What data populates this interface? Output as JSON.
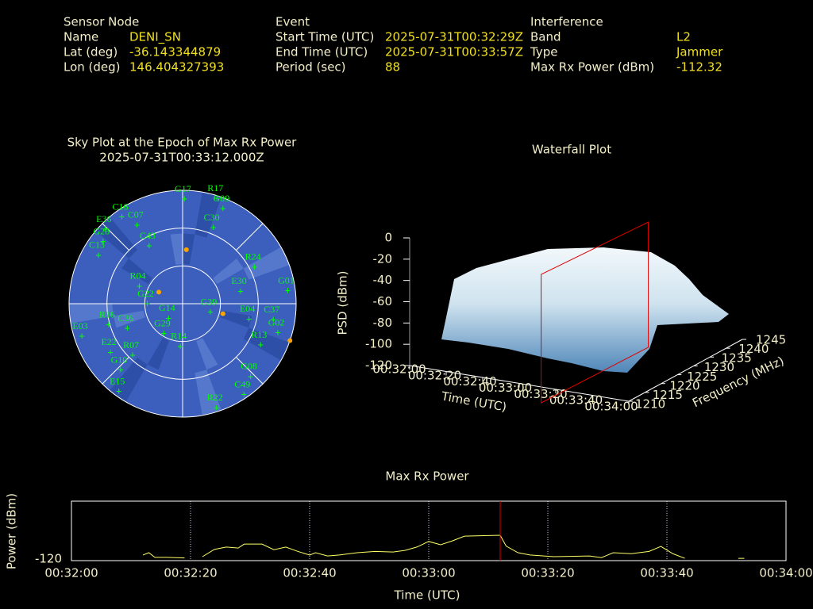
{
  "sensor": {
    "heading": "Sensor Node",
    "rows": [
      [
        "Name",
        "DENI_SN"
      ],
      [
        "Lat (deg)",
        "-36.143344879"
      ],
      [
        "Lon (deg)",
        "146.404327393"
      ]
    ]
  },
  "event": {
    "heading": "Event",
    "rows": [
      [
        "Start Time (UTC)",
        "2025-07-31T00:32:29Z"
      ],
      [
        "End Time (UTC)",
        "2025-07-31T00:33:57Z"
      ],
      [
        "Period (sec)",
        "88"
      ]
    ]
  },
  "interference": {
    "heading": "Interference",
    "rows": [
      [
        "Band",
        "L2"
      ],
      [
        "Type",
        "Jammer"
      ],
      [
        "Max Rx Power (dBm)",
        "-112.32"
      ]
    ]
  },
  "chart_data": [
    {
      "type": "polar",
      "title": "Sky Plot at the Epoch of Max Rx Power",
      "subtitle": "2025-07-31T00:33:12.000Z",
      "rlim": [
        0,
        90
      ],
      "rticks": [
        0,
        30,
        60
      ],
      "series": [
        {
          "color": "#00ff00",
          "labels": [
            "G17",
            "R17",
            "G09",
            "C30",
            "R24",
            "G01",
            "E04",
            "C37",
            "G02",
            "R13",
            "G08",
            "C49",
            "R22",
            "G39",
            "G14",
            "G29",
            "R14",
            "R04",
            "G22",
            "R16",
            "C36",
            "E03",
            "E22",
            "R07",
            "G10",
            "E15",
            "C13",
            "C07",
            "E36",
            "G28",
            "C16",
            "E30",
            "C43"
          ],
          "az": [
            1,
            18,
            23,
            22,
            63,
            83,
            103,
            100,
            107,
            118,
            137,
            146,
            162,
            107,
            224,
            212,
            183,
            292,
            270,
            254,
            246,
            252,
            236,
            224,
            223,
            216,
            300,
            330,
            314,
            308,
            325,
            78,
            330
          ],
          "el": [
            7,
            2,
            8,
            25,
            26,
            6,
            36,
            17,
            11,
            20,
            11,
            3,
            3,
            67,
            74,
            62,
            56,
            53,
            62,
            29,
            42,
            6,
            21,
            33,
            18,
            4,
            13,
            18,
            5,
            10,
            6,
            43,
            37
          ]
        },
        {
          "color": "#ffa500",
          "az": [
            4,
            296,
            104,
            109
          ],
          "el": [
            47,
            69,
            57,
            0
          ]
        }
      ]
    },
    {
      "type": "surface",
      "title": "Waterfall Plot",
      "xlabel": "Time (UTC)",
      "ylabel": "Frequency (MHz)",
      "zlabel": "PSD (dBm)",
      "xlim": [
        "00:32:00",
        "00:34:00"
      ],
      "xticks": [
        "00:32:00",
        "00:32:20",
        "00:32:40",
        "00:33:00",
        "00:33:20",
        "00:33:40",
        "00:34:00"
      ],
      "ylim": [
        1210,
        1245
      ],
      "yticks": [
        1210,
        1215,
        1220,
        1225,
        1230,
        1235,
        1240,
        1245
      ],
      "zlim": [
        -120,
        0
      ],
      "zticks": [
        0,
        -20,
        -40,
        -60,
        -80,
        -100,
        -120
      ],
      "cursor": "00:33:12",
      "cursor_color": "#e00000"
    },
    {
      "type": "line",
      "title": "Max Rx Power",
      "xlabel": "Time (UTC)",
      "ylabel": "Power (dBm)",
      "xlim": [
        "00:32:00",
        "00:34:00"
      ],
      "xticks": [
        "00:32:00",
        "00:32:20",
        "00:32:40",
        "00:33:00",
        "00:33:20",
        "00:33:40",
        "00:34:00"
      ],
      "ylim": [
        -120,
        -102
      ],
      "yticks": [
        -120
      ],
      "grid": true,
      "color": "#ffff66",
      "cursor": "00:33:12",
      "cursor_color": "#e00000",
      "x": [
        "00:32:12",
        "00:32:13",
        "00:32:14",
        "00:32:16",
        "00:32:19",
        "00:32:20",
        "00:32:22",
        "00:32:24",
        "00:32:26",
        "00:32:28",
        "00:32:29",
        "00:32:32",
        "00:32:34",
        "00:32:36",
        "00:32:38",
        "00:32:40",
        "00:32:41",
        "00:32:43",
        "00:32:45",
        "00:32:48",
        "00:32:51",
        "00:32:54",
        "00:32:56",
        "00:32:58",
        "00:33:00",
        "00:33:02",
        "00:33:04",
        "00:33:06",
        "00:33:12",
        "00:33:13",
        "00:33:15",
        "00:33:17",
        "00:33:21",
        "00:33:27",
        "00:33:29",
        "00:33:31",
        "00:33:34",
        "00:33:37",
        "00:33:39",
        "00:33:41",
        "00:33:43",
        "00:33:44",
        "00:33:52",
        "00:33:53"
      ],
      "values": [
        -118.3,
        -117.6,
        -119,
        -119,
        -119.2,
        null,
        -118.8,
        -116.6,
        -115.9,
        -116.2,
        -115,
        -115,
        -116.7,
        -115.9,
        -117.2,
        -118.3,
        -117.6,
        -118.6,
        -118.3,
        -117.6,
        -117.2,
        -117.4,
        -116.9,
        -115.9,
        -114.2,
        -115.2,
        -114,
        -112.6,
        -112.32,
        -115.6,
        -117.6,
        -118.3,
        -118.8,
        -118.6,
        -119.1,
        -117.6,
        -117.9,
        -117.2,
        -115.7,
        -117.9,
        -119.3,
        null,
        -119.3,
        -119.3
      ]
    }
  ]
}
